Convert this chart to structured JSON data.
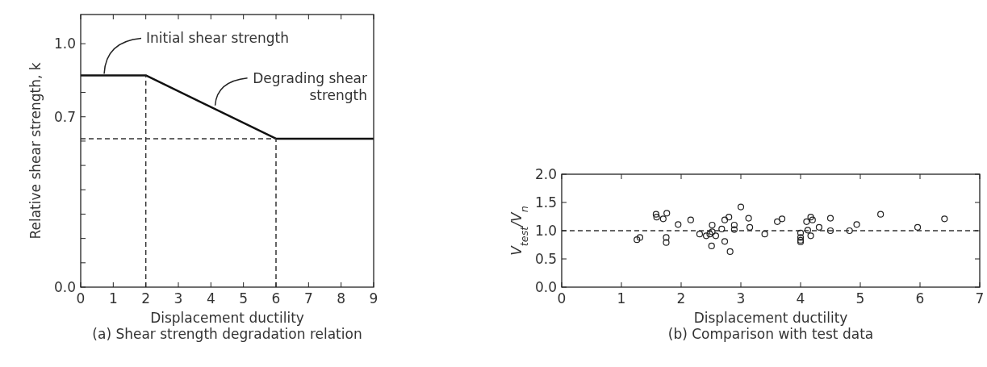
{
  "chart_data": [
    {
      "type": "line",
      "title": "(a) Shear strength degradation relation",
      "xlabel": "Displacement ductility",
      "ylabel": "Relative shear strength, k",
      "xlim": [
        0,
        9
      ],
      "ylim": [
        0,
        1.12
      ],
      "xticks": [
        0,
        1,
        2,
        3,
        4,
        5,
        6,
        7,
        8,
        9
      ],
      "yticks": [
        {
          "value": 0,
          "label": "0.0"
        },
        {
          "value": 0.1,
          "label": null
        },
        {
          "value": 0.2,
          "label": null
        },
        {
          "value": 0.3,
          "label": null
        },
        {
          "value": 0.4,
          "label": null
        },
        {
          "value": 0.5,
          "label": null
        },
        {
          "value": 0.6,
          "label": null
        },
        0.7,
        {
          "value": 0.8,
          "label": null
        },
        {
          "value": 1,
          "label": "1.0"
        }
      ],
      "series": [
        {
          "color": "#111111",
          "x": [
            0,
            2,
            6,
            9
          ],
          "values": [
            0.87,
            0.87,
            0.61,
            0.61
          ],
          "line_style": "solid"
        },
        {
          "color": "#333333",
          "x": [
            2,
            2
          ],
          "values": [
            0,
            0.87
          ],
          "line_style": "dashed"
        },
        {
          "color": "#333333",
          "x": [
            6,
            6
          ],
          "values": [
            0,
            0.61
          ],
          "line_style": "dashed"
        },
        {
          "color": "#333333",
          "x": [
            0,
            6
          ],
          "values": [
            0.61,
            0.61
          ],
          "line_style": "dashed"
        }
      ],
      "annotations": [
        {
          "text": "Initial shear strength",
          "x": 0.72,
          "y": 0.87
        },
        {
          "text": "Degrading shear strength",
          "x": 4.13,
          "y": 0.74
        }
      ]
    },
    {
      "type": "scatter",
      "title": "(b) Comparison with test data",
      "xlabel": "Displacement ductility",
      "ylabel": "V$_{test}$/V$_{n}$",
      "xlim": [
        0,
        7
      ],
      "ylim": [
        0,
        2
      ],
      "xticks": [
        0,
        1,
        2,
        3,
        4,
        5,
        6,
        7
      ],
      "yticks": [
        {
          "value": 0,
          "label": "0.0"
        },
        0.5,
        {
          "value": 1,
          "label": "1.0"
        },
        1.5,
        {
          "value": 2,
          "label": "2.0"
        }
      ],
      "marker": "circle",
      "ref_lines": [
        {
          "axis": "y",
          "value": 1.0,
          "line_style": "dashed",
          "color": "#333333"
        }
      ],
      "series": [
        {
          "color": "#222222",
          "x": [
            1.26,
            1.31,
            1.58,
            1.59,
            1.7,
            1.76,
            1.75,
            1.75,
            1.95,
            2.16,
            2.31,
            2.42,
            2.48,
            2.52,
            2.52,
            2.58,
            2.51,
            2.68,
            2.73,
            2.8,
            2.73,
            2.82,
            2.89,
            2.89,
            3.0,
            3.13,
            3.15,
            3.4,
            3.61,
            3.69,
            4.0,
            4.0,
            4.0,
            4.0,
            4.1,
            4.12,
            4.17,
            4.2,
            4.17,
            4.31,
            4.5,
            4.5,
            4.82,
            4.94,
            5.34,
            5.96,
            6.41
          ],
          "values": [
            0.84,
            0.88,
            1.29,
            1.24,
            1.21,
            1.31,
            0.88,
            0.79,
            1.11,
            1.19,
            0.94,
            0.91,
            0.94,
            1.1,
            0.98,
            0.91,
            0.73,
            1.03,
            1.19,
            1.24,
            0.81,
            0.63,
            1.1,
            1.02,
            1.42,
            1.22,
            1.06,
            0.94,
            1.16,
            1.21,
            0.96,
            0.88,
            0.83,
            0.8,
            1.16,
            1.01,
            1.24,
            1.19,
            0.91,
            1.06,
            1.22,
            1.0,
            1.0,
            1.11,
            1.29,
            1.06,
            1.21
          ]
        }
      ]
    }
  ]
}
